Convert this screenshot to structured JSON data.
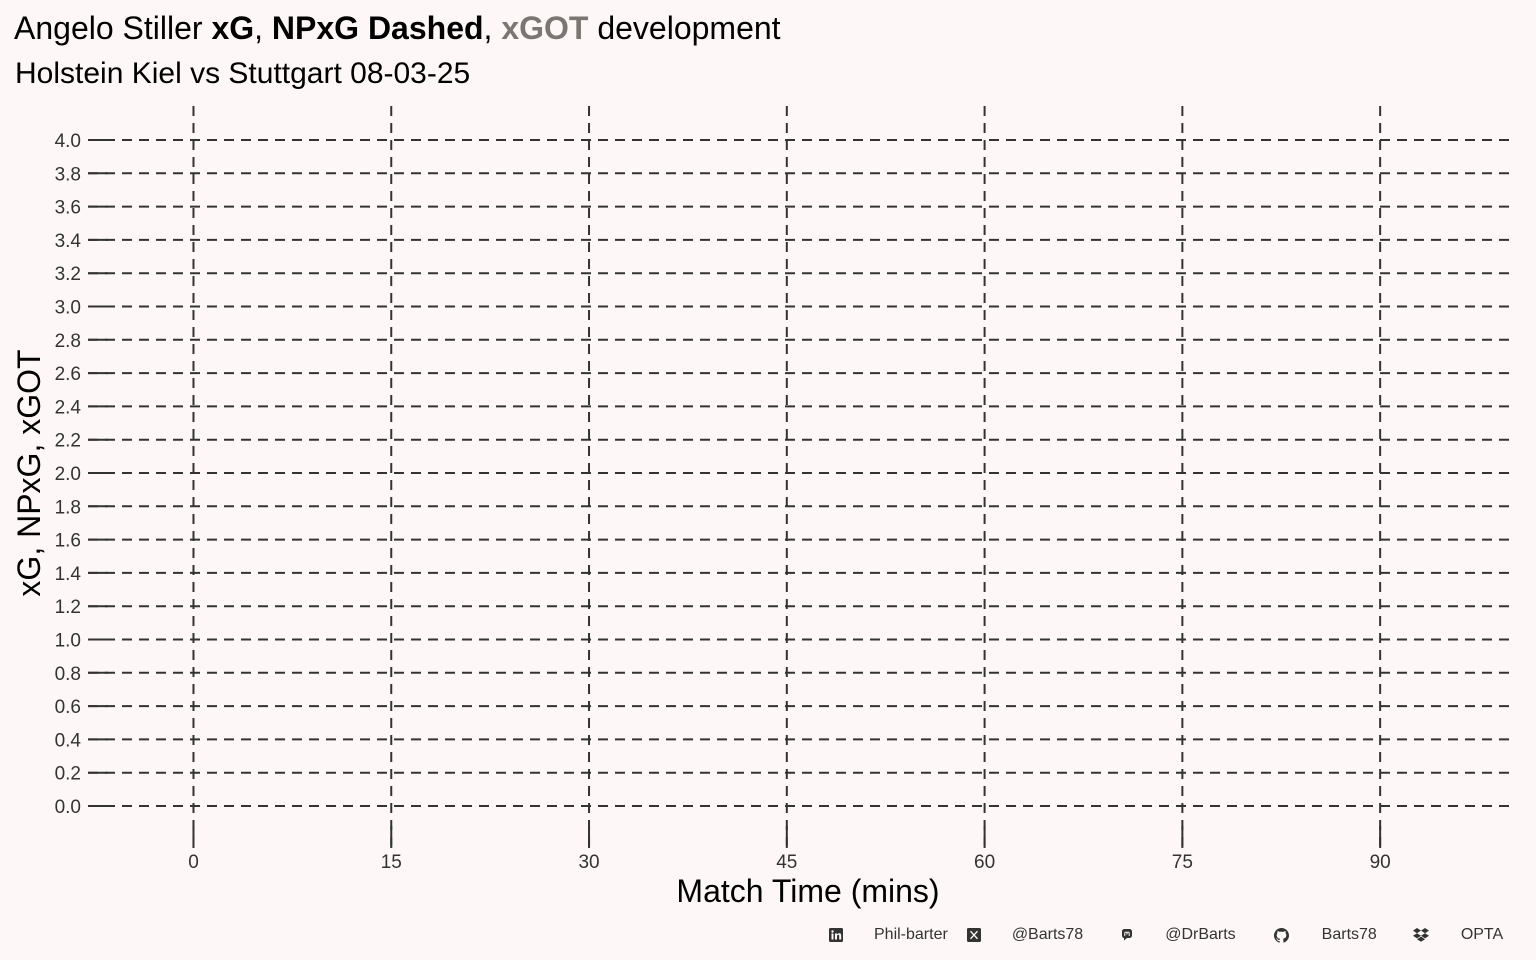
{
  "title": {
    "prefix": "Angelo Stiller ",
    "xg": "xG",
    "sep1": ", ",
    "npxg": "NPxG Dashed",
    "sep2": ", ",
    "xgot": "xGOT",
    "suffix": " development"
  },
  "subtitle": "Holstein Kiel vs Stuttgart 08-03-25",
  "colors": {
    "background": "#fdf8f7",
    "grid": "#333333",
    "xgot": "#7a7672"
  },
  "chart_data": {
    "type": "line",
    "xlabel": "Match Time (mins)",
    "ylabel": "xG, NPxG, xGOT",
    "xlim": [
      -8,
      100
    ],
    "ylim": [
      0,
      4.0
    ],
    "x_ticks": [
      "0",
      "15",
      "30",
      "45",
      "60",
      "75",
      "90"
    ],
    "x_tick_values": [
      0,
      15,
      30,
      45,
      60,
      75,
      90
    ],
    "y_ticks": [
      "0.0",
      "0.2",
      "0.4",
      "0.6",
      "0.8",
      "1.0",
      "1.2",
      "1.4",
      "1.6",
      "1.8",
      "2.0",
      "2.2",
      "2.4",
      "2.6",
      "2.8",
      "3.0",
      "3.2",
      "3.4",
      "3.6",
      "3.8",
      "4.0"
    ],
    "y_tick_values": [
      0,
      0.2,
      0.4,
      0.6,
      0.8,
      1.0,
      1.2,
      1.4,
      1.6,
      1.8,
      2.0,
      2.2,
      2.4,
      2.6,
      2.8,
      3.0,
      3.2,
      3.4,
      3.6,
      3.8,
      4.0
    ],
    "grid": true,
    "grid_style": "dashed",
    "series": []
  },
  "caption": [
    {
      "icon": "linkedin-icon",
      "text": "Phil-barter"
    },
    {
      "icon": "x-twitter-icon",
      "text": "@Barts78"
    },
    {
      "icon": "mastodon-icon",
      "text": "@DrBarts"
    },
    {
      "icon": "github-icon",
      "text": "Barts78"
    },
    {
      "icon": "dropbox-icon",
      "text": "OPTA"
    }
  ]
}
